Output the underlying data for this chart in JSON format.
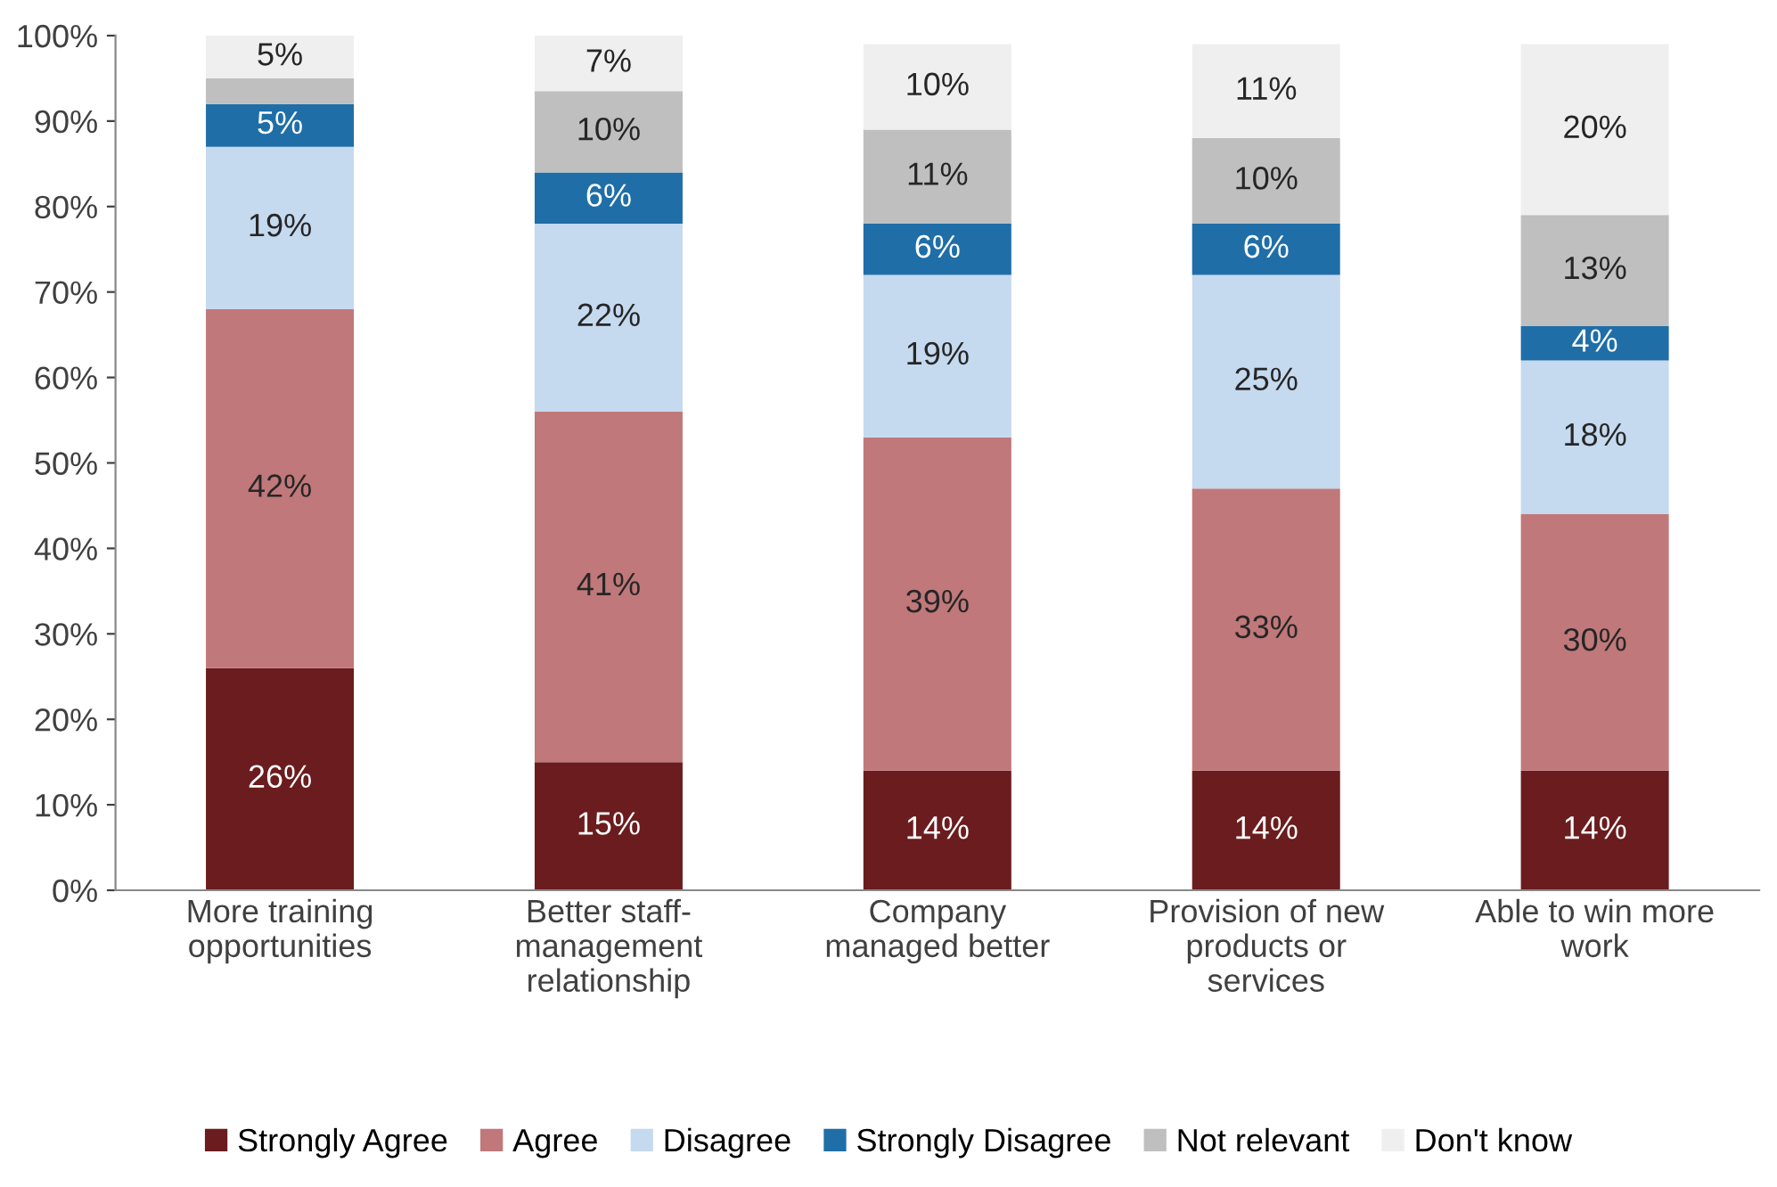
{
  "chart_data": {
    "type": "bar",
    "stacked": true,
    "categories": [
      "More training\nopportunities",
      "Better staff-\nmanagement\nrelationship",
      "Company\nmanaged better",
      "Provision of new\nproducts or\nservices",
      "Able to win more\nwork"
    ],
    "series": [
      {
        "name": "Strongly Agree",
        "color": "#6b1c1e",
        "values": [
          26,
          15,
          14,
          14,
          14
        ],
        "value_labels": [
          "26%",
          "15%",
          "14%",
          "14%",
          "14%"
        ]
      },
      {
        "name": "Agree",
        "color": "#c0787a",
        "values": [
          42,
          41,
          39,
          33,
          30
        ],
        "value_labels": [
          "42%",
          "41%",
          "39%",
          "33%",
          "30%"
        ]
      },
      {
        "name": "Disagree",
        "color": "#c5d9ef",
        "values": [
          19,
          22,
          19,
          25,
          18
        ],
        "value_labels": [
          "19%",
          "22%",
          "19%",
          "25%",
          "18%"
        ]
      },
      {
        "name": "Strongly Disagree",
        "color": "#1f6ea8",
        "values": [
          5,
          6,
          6,
          6,
          4
        ],
        "value_labels": [
          "5%",
          "6%",
          "6%",
          "6%",
          "4%"
        ]
      },
      {
        "name": "Not relevant",
        "color": "#bfbfbf",
        "values": [
          3,
          9.5,
          11,
          10,
          13
        ],
        "value_labels": [
          null,
          "10%",
          "11%",
          "10%",
          "13%"
        ]
      },
      {
        "name": "Don't know",
        "color": "#efefef",
        "values": [
          5,
          6.5,
          10,
          11,
          20
        ],
        "value_labels": [
          "5%",
          "7%",
          "10%",
          "11%",
          "20%"
        ]
      }
    ],
    "ylim": [
      0,
      100
    ],
    "yticks": [
      {
        "value": 0,
        "label": "0%"
      },
      {
        "value": 10,
        "label": "10%"
      },
      {
        "value": 20,
        "label": "20%"
      },
      {
        "value": 30,
        "label": "30%"
      },
      {
        "value": 40,
        "label": "40%"
      },
      {
        "value": 50,
        "label": "50%"
      },
      {
        "value": 60,
        "label": "60%"
      },
      {
        "value": 70,
        "label": "70%"
      },
      {
        "value": 80,
        "label": "80%"
      },
      {
        "value": 90,
        "label": "90%"
      },
      {
        "value": 100,
        "label": "100%"
      }
    ],
    "grid": false,
    "legend": "bottom"
  }
}
